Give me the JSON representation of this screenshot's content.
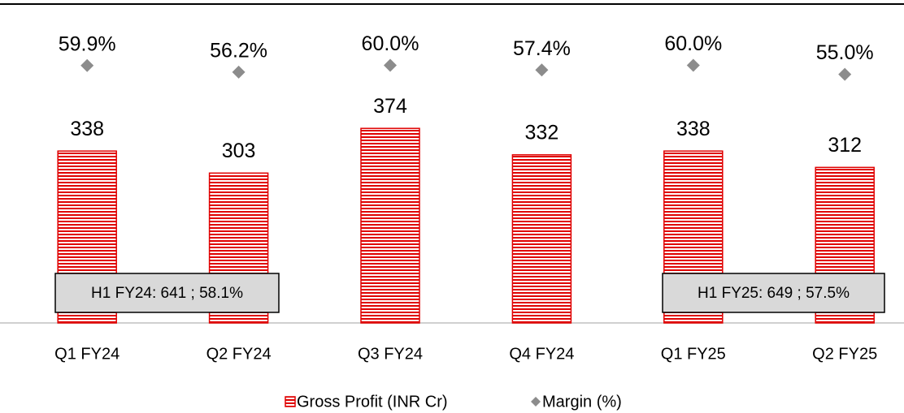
{
  "chart_data": {
    "type": "bar_marker",
    "categories": [
      "Q1 FY24",
      "Q2 FY24",
      "Q3 FY24",
      "Q4 FY24",
      "Q1 FY25",
      "Q2 FY25"
    ],
    "series": [
      {
        "name": "Gross Profit (INR Cr)",
        "color": "#e00000",
        "values": [
          338,
          303,
          374,
          332,
          338,
          312
        ]
      },
      {
        "name": "Margin (%)",
        "color": "#8c8c8c",
        "axis": "y2",
        "values": [
          59.9,
          56.2,
          60.0,
          57.4,
          60.0,
          55.0
        ],
        "value_labels": [
          "59.9%",
          "56.2%",
          "60.0%",
          "57.4%",
          "60.0%",
          "55.0%"
        ]
      }
    ],
    "ylim": [
      65,
      565
    ],
    "y2lim": [
      -84,
      92
    ],
    "annotations": [
      "H1 FY24: 641 ; 58.1%",
      "H1 FY25: 649 ; 57.5%"
    ],
    "legend": "bottom"
  }
}
